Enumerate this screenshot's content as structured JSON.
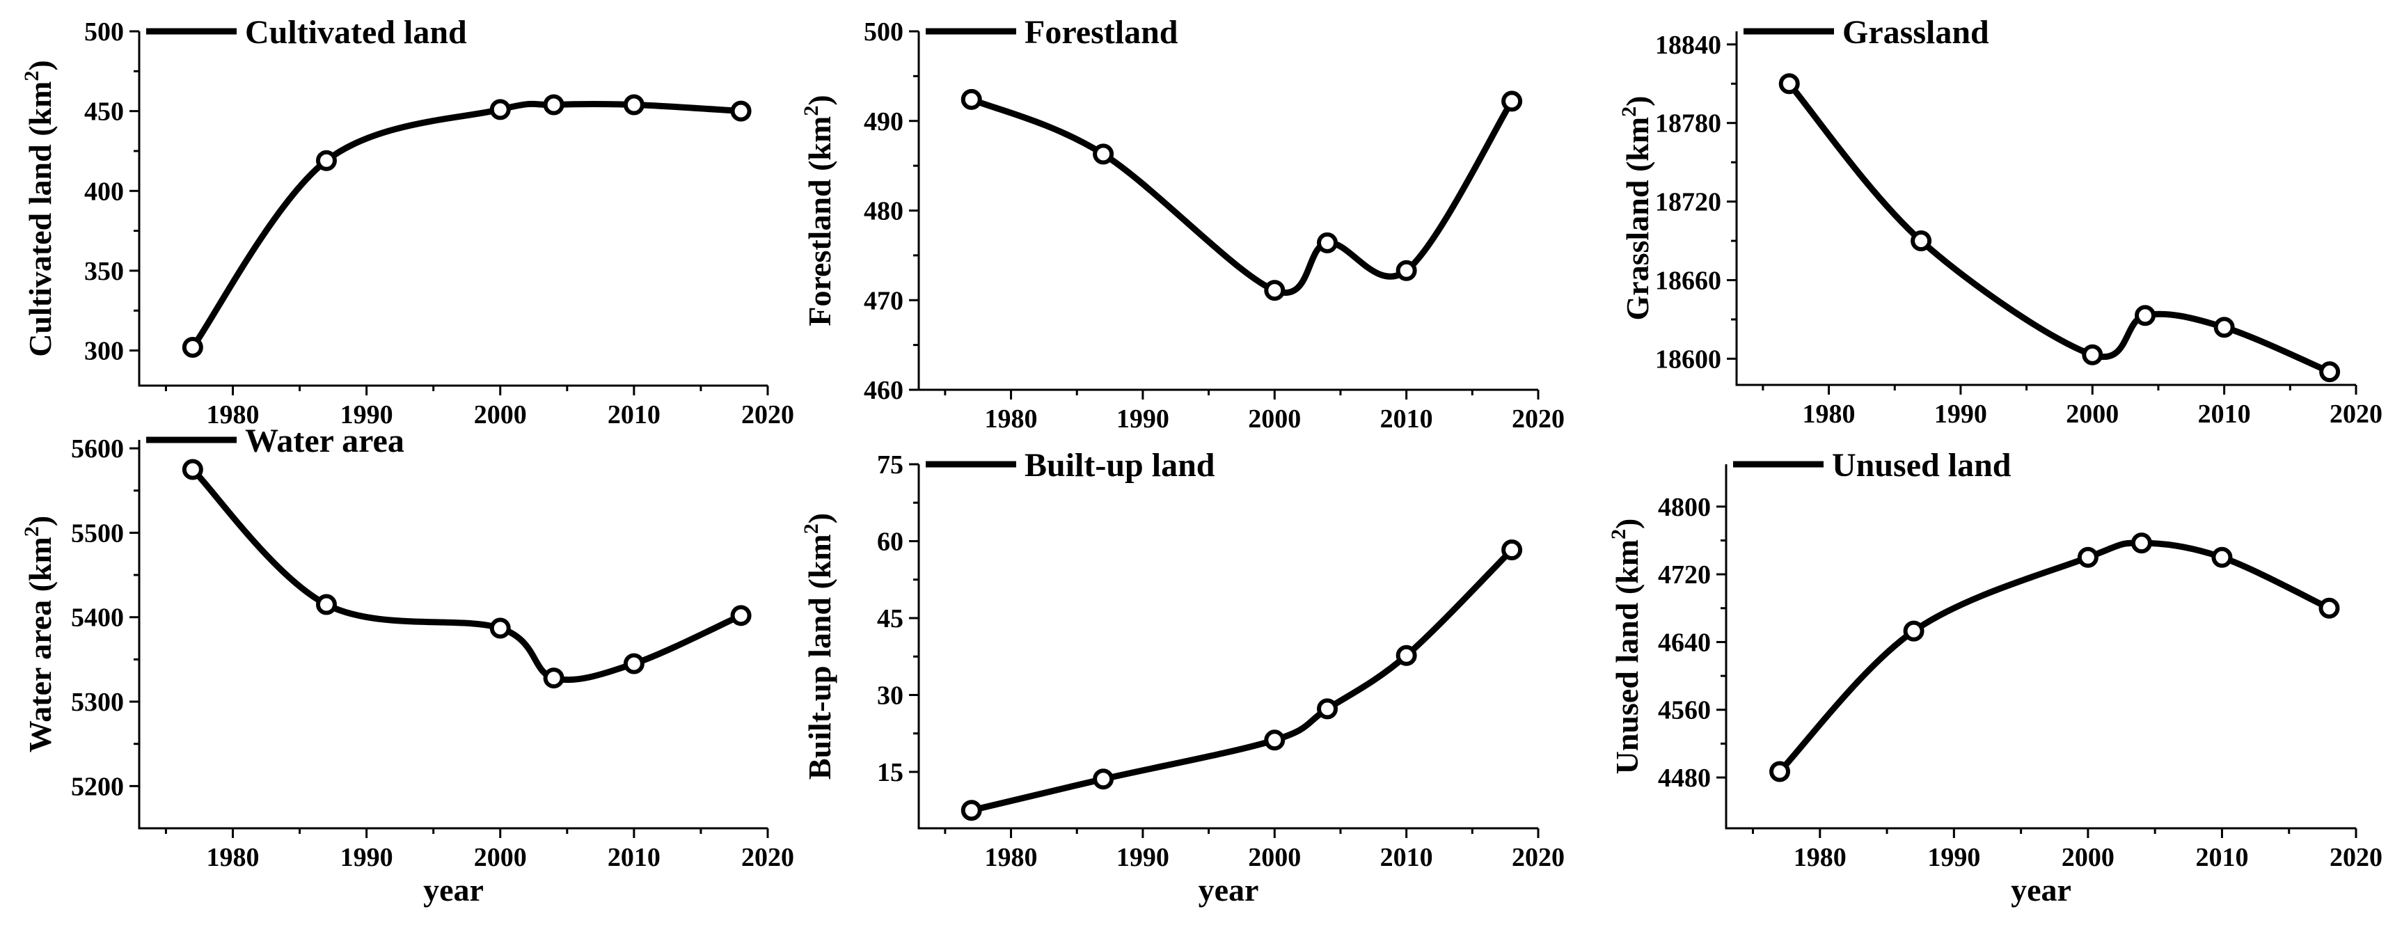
{
  "chart_data": [
    {
      "type": "line",
      "legend": "Cultivated land",
      "ylabel": "Cultivated land (km",
      "ylabel_sup": "2",
      "ylabel_close": ")",
      "xlabel": "",
      "x": [
        1977,
        1987,
        2000,
        2004,
        2010,
        2018
      ],
      "series": [
        {
          "name": "Cultivated land",
          "values": [
            302,
            419,
            451,
            454,
            454,
            450
          ]
        }
      ],
      "xlim": [
        1973,
        2020
      ],
      "ylim": [
        278,
        500
      ],
      "xticks": [
        1980,
        1990,
        2000,
        2010,
        2020
      ],
      "yticks": [
        300,
        350,
        400,
        450,
        500
      ],
      "legend_position": "top-left",
      "grid": false
    },
    {
      "type": "line",
      "legend": "Forestland",
      "ylabel": "Forestland (km",
      "ylabel_sup": "2",
      "ylabel_close": ")",
      "xlabel": "",
      "x": [
        1977,
        1987,
        2000,
        2004,
        2010,
        2018
      ],
      "series": [
        {
          "name": "Forestland",
          "values": [
            492.4,
            486.3,
            471.1,
            476.4,
            473.3,
            492.2
          ]
        }
      ],
      "xlim": [
        1973,
        2020
      ],
      "ylim": [
        460,
        500
      ],
      "xticks": [
        1980,
        1990,
        2000,
        2010,
        2020
      ],
      "yticks": [
        460,
        470,
        480,
        490,
        500
      ],
      "legend_position": "top-left",
      "grid": false
    },
    {
      "type": "line",
      "legend": "Grassland",
      "ylabel": "Grassland (km",
      "ylabel_sup": "2",
      "ylabel_close": ")",
      "xlabel": "",
      "x": [
        1977,
        1987,
        2000,
        2004,
        2010,
        2018
      ],
      "series": [
        {
          "name": "Grassland",
          "values": [
            18810,
            18690,
            18603,
            18633,
            18624,
            18590
          ]
        }
      ],
      "xlim": [
        1973,
        2020
      ],
      "ylim": [
        18580,
        18850
      ],
      "xticks": [
        1980,
        1990,
        2000,
        2010,
        2020
      ],
      "yticks": [
        18600,
        18660,
        18720,
        18780,
        18840
      ],
      "legend_position": "top-left",
      "grid": false
    },
    {
      "type": "line",
      "legend": "Water area",
      "ylabel": "Water area (km",
      "ylabel_sup": "2",
      "ylabel_close": ")",
      "xlabel": "year",
      "x": [
        1977,
        1987,
        2000,
        2004,
        2010,
        2018
      ],
      "series": [
        {
          "name": "Water area",
          "values": [
            5575,
            5415,
            5387,
            5328,
            5345,
            5402
          ]
        }
      ],
      "xlim": [
        1973,
        2020
      ],
      "ylim": [
        5150,
        5610
      ],
      "xticks": [
        1980,
        1990,
        2000,
        2010,
        2020
      ],
      "yticks": [
        5200,
        5300,
        5400,
        5500,
        5600
      ],
      "legend_position": "top-left",
      "grid": false
    },
    {
      "type": "line",
      "legend": "Built-up land",
      "ylabel": "Built-up land (km",
      "ylabel_sup": "2",
      "ylabel_close": ")",
      "xlabel": "year",
      "x": [
        1977,
        1987,
        2000,
        2004,
        2010,
        2018
      ],
      "series": [
        {
          "name": "Built-up land",
          "values": [
            7.5,
            13.6,
            21.2,
            27.3,
            37.7,
            58.3
          ]
        }
      ],
      "xlim": [
        1973,
        2020
      ],
      "ylim": [
        4,
        75
      ],
      "xticks": [
        1980,
        1990,
        2000,
        2010,
        2020
      ],
      "yticks": [
        15,
        30,
        45,
        60,
        75
      ],
      "legend_position": "top-left",
      "grid": false
    },
    {
      "type": "line",
      "legend": "Unused land",
      "ylabel": "Unused land (km",
      "ylabel_sup": "2",
      "ylabel_close": ")",
      "xlabel": "year",
      "x": [
        1977,
        1987,
        2000,
        2004,
        2010,
        2018
      ],
      "series": [
        {
          "name": "Unused land",
          "values": [
            4487,
            4653,
            4740,
            4757,
            4740,
            4680
          ]
        }
      ],
      "xlim": [
        1973,
        2020
      ],
      "ylim": [
        4420,
        4850
      ],
      "xticks": [
        1980,
        1990,
        2000,
        2010,
        2020
      ],
      "yticks": [
        4480,
        4560,
        4640,
        4720,
        4800
      ],
      "legend_position": "top-left",
      "grid": false
    }
  ]
}
